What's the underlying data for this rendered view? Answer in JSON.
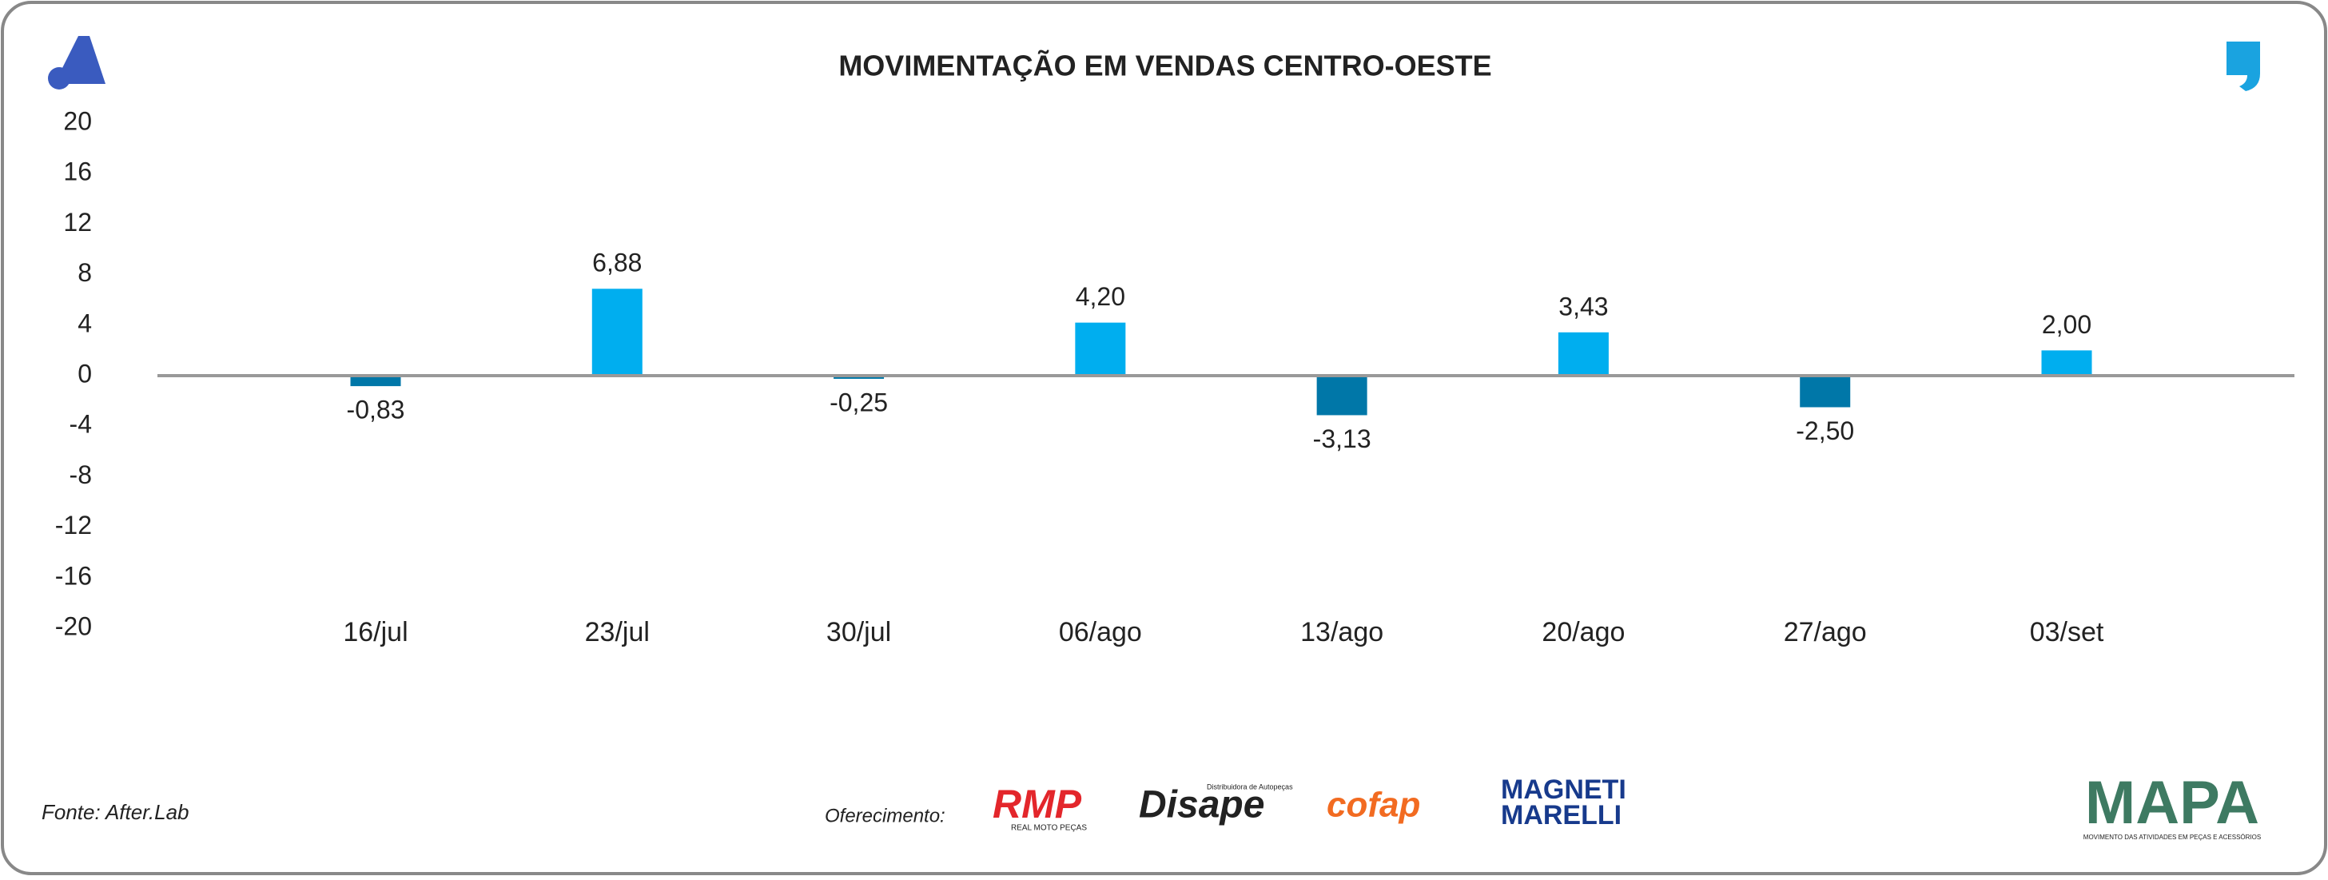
{
  "chart_data": {
    "type": "bar",
    "title": "MOVIMENTAÇÃO EM VENDAS CENTRO-OESTE",
    "categories": [
      "16/jul",
      "23/jul",
      "30/jul",
      "06/ago",
      "13/ago",
      "20/ago",
      "27/ago",
      "03/set"
    ],
    "values": [
      -0.83,
      6.88,
      -0.25,
      4.2,
      -3.13,
      3.43,
      -2.5,
      2.0
    ],
    "value_labels": [
      "-0,83",
      "6,88",
      "-0,25",
      "4,20",
      "-3,13",
      "3,43",
      "-2,50",
      "2,00"
    ],
    "colors": [
      "#0077a8",
      "#00aeef",
      "#0077a8",
      "#00aeef",
      "#0077a8",
      "#00aeef",
      "#0077a8",
      "#00aeef"
    ],
    "ylim": [
      -20,
      20
    ],
    "yticks": [
      -20,
      -16,
      -12,
      -8,
      -4,
      0,
      4,
      8,
      12,
      16,
      20
    ],
    "grid": false
  },
  "footer": {
    "source": "Fonte: After.Lab",
    "sponsor_label": "Oferecimento:",
    "sponsors": [
      "RMP",
      "REAL MOTO PEÇAS",
      "Disape",
      "Distribuidora de Autopeças",
      "cofap",
      "MAGNETI",
      "MARELLI"
    ],
    "brand": "MAPA",
    "brand_tagline": "MOVIMENTO DAS ATIVIDADES EM PEÇAS E ACESSÓRIOS"
  }
}
